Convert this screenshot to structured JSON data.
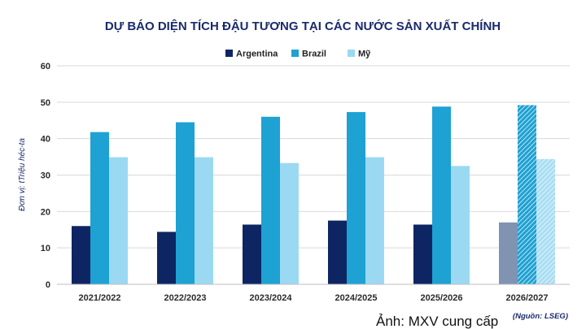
{
  "chart_data": {
    "type": "bar",
    "title": "DỰ BÁO DIỆN TÍCH ĐẬU TƯƠNG TẠI CÁC NƯỚC SẢN XUẤT CHÍNH",
    "ylabel": "Đơn vị: tTriệu héc-ta",
    "xlabel": "",
    "ylim": [
      0,
      60
    ],
    "yticks": [
      0,
      10,
      20,
      30,
      40,
      50,
      60
    ],
    "grid": true,
    "legend_position": "top-center",
    "categories": [
      "2021/2022",
      "2022/2023",
      "2023/2024",
      "2024/2025",
      "2025/2026",
      "2026/2027"
    ],
    "forecast_categories": [
      "2026/2027"
    ],
    "series": [
      {
        "name": "Argentina",
        "color": "#0d2563",
        "forecast_color": "#8093b3",
        "values": [
          16.0,
          14.4,
          16.4,
          17.5,
          16.4,
          17.0
        ]
      },
      {
        "name": "Brazil",
        "color": "#1ea1d3",
        "forecast_color": "#1ea1d3",
        "values": [
          41.8,
          44.5,
          46.0,
          47.3,
          48.8,
          49.2
        ]
      },
      {
        "name": "Mỹ",
        "color": "#9bd9f2",
        "forecast_color": "#a9def3",
        "values": [
          34.9,
          34.9,
          33.3,
          34.9,
          32.5,
          34.4
        ]
      }
    ]
  },
  "source_note": "(Nguồn: LSEG)",
  "caption": "Ảnh: MXV cung cấp"
}
